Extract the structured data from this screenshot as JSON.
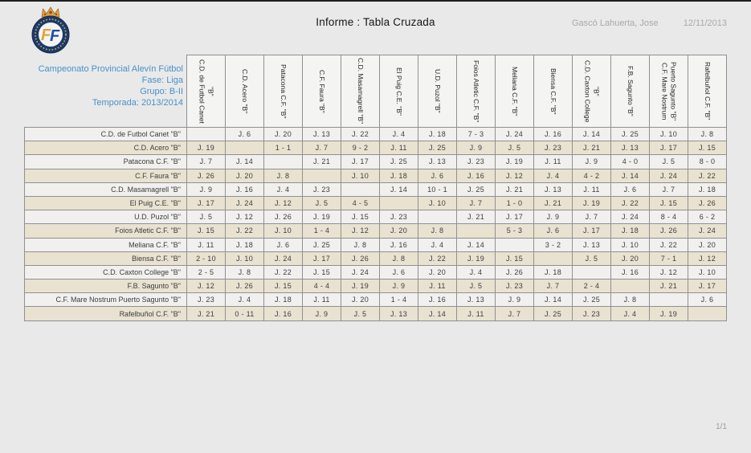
{
  "report": {
    "title": "Informe : Tabla Cruzada",
    "author": "Gascó Lahuerta, Jose",
    "date": "12/11/2013",
    "page_indicator": "1/1"
  },
  "competition": {
    "name": "Campeonato Provincial Alevín Fútbol",
    "fase": "Fase: Liga",
    "grupo": "Grupo: B-II",
    "temporada": "Temporada: 2013/2014"
  },
  "logo": {
    "icon": "ffcv-crest",
    "letter_first": "F",
    "letter_second": "F"
  },
  "colors": {
    "page_bg": "#e9e9e9",
    "info_text": "#4a90c8",
    "muted_text": "#a9a9a9",
    "grid_line": "#909090",
    "header_cell_bg": "#f4f4f3",
    "row_light": "#f1f0ee",
    "row_beige": "#e9e2d1",
    "cell_text": "#3c3c3c",
    "logo_navy": "#1b3a6d",
    "logo_gold": "#d9a53a"
  },
  "table": {
    "columns": [
      "C.D. de Futbol Canet \"B\"",
      "C.D. Acero \"B\"",
      "Patacona C.F. \"B\"",
      "C.F. Faura \"B\"",
      "C.D. Masamagrell \"B\"",
      "El Puig C.E. \"B\"",
      "U.D. Puzol \"B\"",
      "Foios Atletic C.F. \"B\"",
      "Meliana C.F. \"B\"",
      "Biensa C.F. \"B\"",
      "C.D. Caxton College \"B\"",
      "F.B. Sagunto \"B\"",
      "C.F. Mare Nostrum Puerto Sagunto \"B\"",
      "Rafelbuñol C.F. \"B\""
    ],
    "rows": [
      {
        "label": "C.D. de Futbol Canet \"B\"",
        "cells": [
          "",
          "J. 6",
          "J. 20",
          "J. 13",
          "J. 22",
          "J. 4",
          "J. 18",
          "7 - 3",
          "J. 24",
          "J. 16",
          "J. 14",
          "J. 25",
          "J. 10",
          "J. 8"
        ]
      },
      {
        "label": "C.D. Acero \"B\"",
        "cells": [
          "J. 19",
          "",
          "1 - 1",
          "J. 7",
          "9 - 2",
          "J. 11",
          "J. 25",
          "J. 9",
          "J. 5",
          "J. 23",
          "J. 21",
          "J. 13",
          "J. 17",
          "J. 15"
        ]
      },
      {
        "label": "Patacona C.F. \"B\"",
        "cells": [
          "J. 7",
          "J. 14",
          "",
          "J. 21",
          "J. 17",
          "J. 25",
          "J. 13",
          "J. 23",
          "J. 19",
          "J. 11",
          "J. 9",
          "4 - 0",
          "J. 5",
          "8 - 0"
        ]
      },
      {
        "label": "C.F. Faura \"B\"",
        "cells": [
          "J. 26",
          "J. 20",
          "J. 8",
          "",
          "J. 10",
          "J. 18",
          "J. 6",
          "J. 16",
          "J. 12",
          "J. 4",
          "4 - 2",
          "J. 14",
          "J. 24",
          "J. 22"
        ]
      },
      {
        "label": "C.D. Masamagrell \"B\"",
        "cells": [
          "J. 9",
          "J. 16",
          "J. 4",
          "J. 23",
          "",
          "J. 14",
          "10 - 1",
          "J. 25",
          "J. 21",
          "J. 13",
          "J. 11",
          "J. 6",
          "J. 7",
          "J. 18"
        ]
      },
      {
        "label": "El Puig C.E. \"B\"",
        "cells": [
          "J. 17",
          "J. 24",
          "J. 12",
          "J. 5",
          "4 - 5",
          "",
          "J. 10",
          "J. 7",
          "1 - 0",
          "J. 21",
          "J. 19",
          "J. 22",
          "J. 15",
          "J. 26"
        ]
      },
      {
        "label": "U.D. Puzol \"B\"",
        "cells": [
          "J. 5",
          "J. 12",
          "J. 26",
          "J. 19",
          "J. 15",
          "J. 23",
          "",
          "J. 21",
          "J. 17",
          "J. 9",
          "J. 7",
          "J. 24",
          "8 - 4",
          "6 - 2"
        ]
      },
      {
        "label": "Foios Atletic C.F. \"B\"",
        "cells": [
          "J. 15",
          "J. 22",
          "J. 10",
          "1 - 4",
          "J. 12",
          "J. 20",
          "J. 8",
          "",
          "5 - 3",
          "J. 6",
          "J. 17",
          "J. 18",
          "J. 26",
          "J. 24"
        ]
      },
      {
        "label": "Meliana C.F. \"B\"",
        "cells": [
          "J. 11",
          "J. 18",
          "J. 6",
          "J. 25",
          "J. 8",
          "J. 16",
          "J. 4",
          "J. 14",
          "",
          "3 - 2",
          "J. 13",
          "J. 10",
          "J. 22",
          "J. 20"
        ]
      },
      {
        "label": "Biensa C.F. \"B\"",
        "cells": [
          "2 - 10",
          "J. 10",
          "J. 24",
          "J. 17",
          "J. 26",
          "J. 8",
          "J. 22",
          "J. 19",
          "J. 15",
          "",
          "J. 5",
          "J. 20",
          "7 - 1",
          "J. 12"
        ]
      },
      {
        "label": "C.D. Caxton College \"B\"",
        "cells": [
          "2 - 5",
          "J. 8",
          "J. 22",
          "J. 15",
          "J. 24",
          "J. 6",
          "J. 20",
          "J. 4",
          "J. 26",
          "J. 18",
          "",
          "J. 16",
          "J. 12",
          "J. 10"
        ]
      },
      {
        "label": "F.B. Sagunto \"B\"",
        "cells": [
          "J. 12",
          "J. 26",
          "J. 15",
          "4 - 4",
          "J. 19",
          "J. 9",
          "J. 11",
          "J. 5",
          "J. 23",
          "J. 7",
          "2 - 4",
          "",
          "J. 21",
          "J. 17"
        ]
      },
      {
        "label": "C.F. Mare Nostrum Puerto Sagunto \"B\"",
        "cells": [
          "J. 23",
          "J. 4",
          "J. 18",
          "J. 11",
          "J. 20",
          "1 - 4",
          "J. 16",
          "J. 13",
          "J. 9",
          "J. 14",
          "J. 25",
          "J. 8",
          "",
          "J. 6"
        ]
      },
      {
        "label": "Rafelbuñol C.F. \"B\"",
        "cells": [
          "J. 21",
          "0 - 11",
          "J. 16",
          "J. 9",
          "J. 5",
          "J. 13",
          "J. 14",
          "J. 11",
          "J. 7",
          "J. 25",
          "J. 23",
          "J. 4",
          "J. 19",
          ""
        ]
      }
    ]
  }
}
